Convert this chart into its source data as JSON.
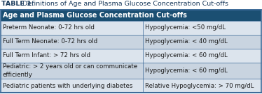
{
  "title_part1": "TABLE 1.",
  "title_part2": " Definitions of Age and Plasma Glucose Concentration Cut-offs",
  "header": "Age and Plasma Glucose Concentration Cut-offs",
  "header_bg": "#1b4f72",
  "header_text_color": "#ffffff",
  "rows": [
    [
      "Preterm Neonate: 0-72 hrs old",
      "Hypoglycemia: <50 mg/dL"
    ],
    [
      "Full Term Neonate: 0-72 hrs old",
      "Hypoglycemia: < 40 mg/dL"
    ],
    [
      "Full Term Infant: > 72 hrs old",
      "Hypoglycemia: < 60 mg/dL"
    ],
    [
      "Pediatric: > 2 years old or can communicate\nefficiently",
      "Hypoglycemia: < 60 mg/dL"
    ],
    [
      "Pediatric patients with underlying diabetes",
      "Relative Hypoglycemia: > 70 mg/dL"
    ]
  ],
  "row_colors": [
    "#dce4ed",
    "#c9d4e0",
    "#dce4ed",
    "#c9d4e0",
    "#dce4ed"
  ],
  "col_split": 0.545,
  "title_color": "#1a3a5c",
  "text_color": "#1a1a1a",
  "border_color": "#3d6b99",
  "bg_color": "#ffffff",
  "fontsize_title": 6.8,
  "fontsize_header": 7.0,
  "fontsize_row": 6.2,
  "fig_width": 3.74,
  "fig_height": 1.35,
  "dpi": 100
}
